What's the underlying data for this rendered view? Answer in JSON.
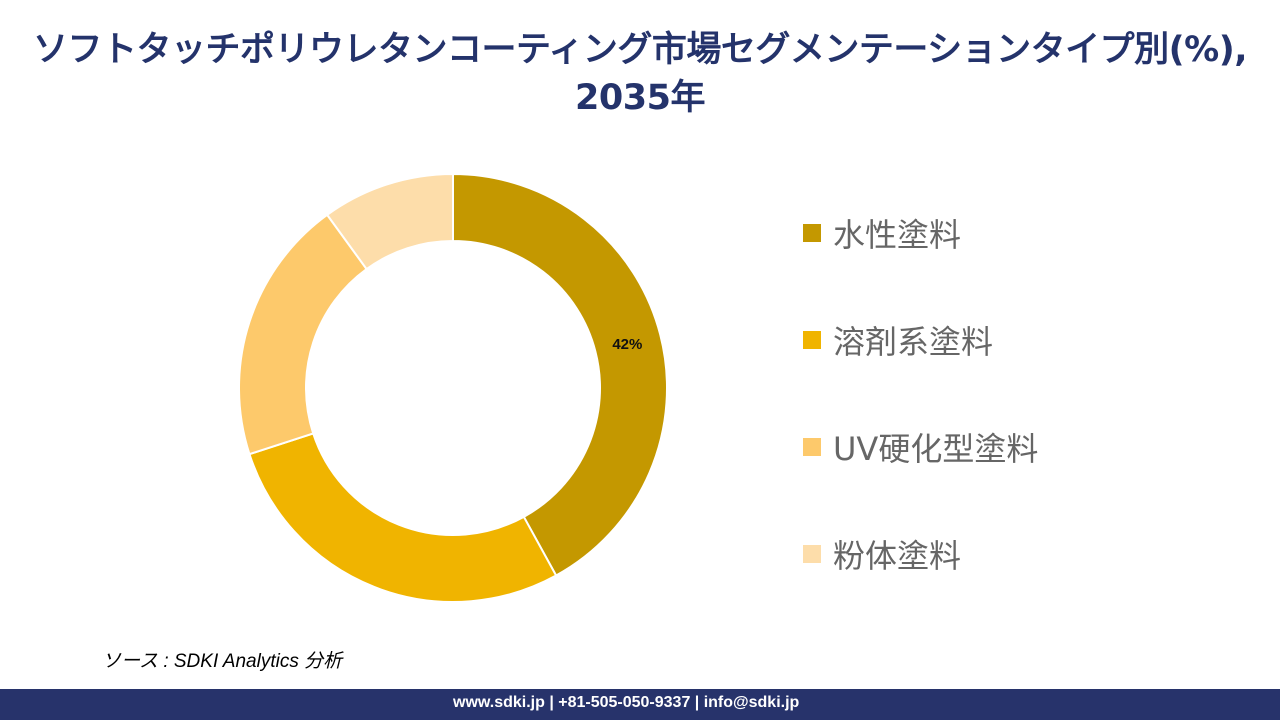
{
  "title": "ソフトタッチポリウレタンコーティング市場セグメンテーションタイプ別(%), 2035年",
  "chart_data": {
    "type": "pie",
    "variant": "donut",
    "title": "ソフトタッチポリウレタンコーティング市場セグメンテーションタイプ別(%), 2035年",
    "categories": [
      "水性塗料",
      "溶剤系塗料",
      "UV硬化型塗料",
      "粉体塗料"
    ],
    "values": [
      42,
      28,
      20,
      10
    ],
    "data_labels": [
      "42%",
      null,
      null,
      null
    ],
    "colors": [
      "#C49800",
      "#F0B400",
      "#FDC96B",
      "#FDDDAA"
    ],
    "legend_position": "right"
  },
  "source": "ソース : SDKI Analytics 分析",
  "footer": "www.sdki.jp | +81-505-050-9337 | info@sdki.jp"
}
